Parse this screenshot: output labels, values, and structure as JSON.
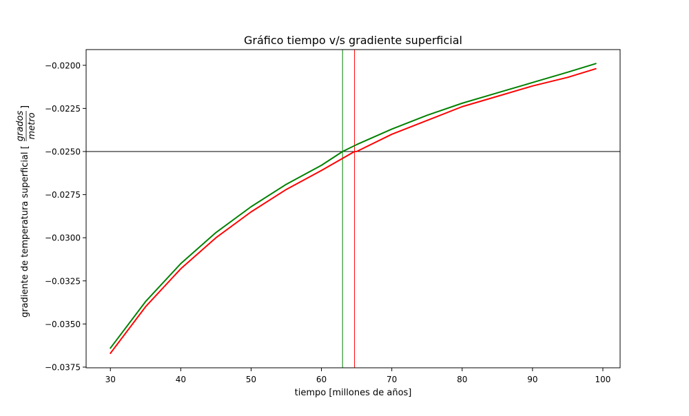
{
  "chart_data": {
    "type": "line",
    "title": "Gráfico tiempo v/s gradiente superficial",
    "xlabel": "tiempo [millones de años]",
    "ylabel": "gradiente de temperatura superficial [",
    "ylabel_fraction": {
      "numerator": "grados",
      "denominator": "metro"
    },
    "ylabel_suffix": "]",
    "xlim": [
      26.55,
      102.45
    ],
    "ylim": [
      -0.03754,
      -0.01909
    ],
    "xticks": [
      30,
      40,
      50,
      60,
      70,
      80,
      90,
      100
    ],
    "yticks": [
      -0.0375,
      -0.035,
      -0.0325,
      -0.03,
      -0.0275,
      -0.025,
      -0.0225,
      -0.02
    ],
    "ytick_labels": [
      "−0.0375",
      "−0.0350",
      "−0.0325",
      "−0.0300",
      "−0.0275",
      "−0.0250",
      "−0.0225",
      "−0.0200"
    ],
    "grid": false,
    "series": [
      {
        "color": "#008000",
        "x": [
          30,
          35,
          40,
          45,
          50,
          55,
          60,
          63,
          65,
          70,
          75,
          80,
          85,
          90,
          95,
          99
        ],
        "values": [
          -0.0364,
          -0.0337,
          -0.0315,
          -0.0297,
          -0.0282,
          -0.0269,
          -0.0258,
          -0.025,
          -0.0246,
          -0.0237,
          -0.0229,
          -0.0222,
          -0.0216,
          -0.021,
          -0.0204,
          -0.0199
        ]
      },
      {
        "color": "#ff0000",
        "x": [
          30,
          35,
          40,
          45,
          50,
          55,
          60,
          64.7,
          65,
          70,
          75,
          80,
          85,
          90,
          95,
          99
        ],
        "values": [
          -0.0367,
          -0.034,
          -0.0318,
          -0.03,
          -0.0285,
          -0.0272,
          -0.0261,
          -0.025,
          -0.025,
          -0.024,
          -0.0232,
          -0.0224,
          -0.0218,
          -0.0212,
          -0.0207,
          -0.0202
        ]
      }
    ],
    "reference_lines": [
      {
        "orientation": "horizontal",
        "value": -0.025,
        "color": "#000000"
      },
      {
        "orientation": "vertical",
        "value": 63.0,
        "color": "#008000"
      },
      {
        "orientation": "vertical",
        "value": 64.7,
        "color": "#ff0000"
      }
    ]
  }
}
